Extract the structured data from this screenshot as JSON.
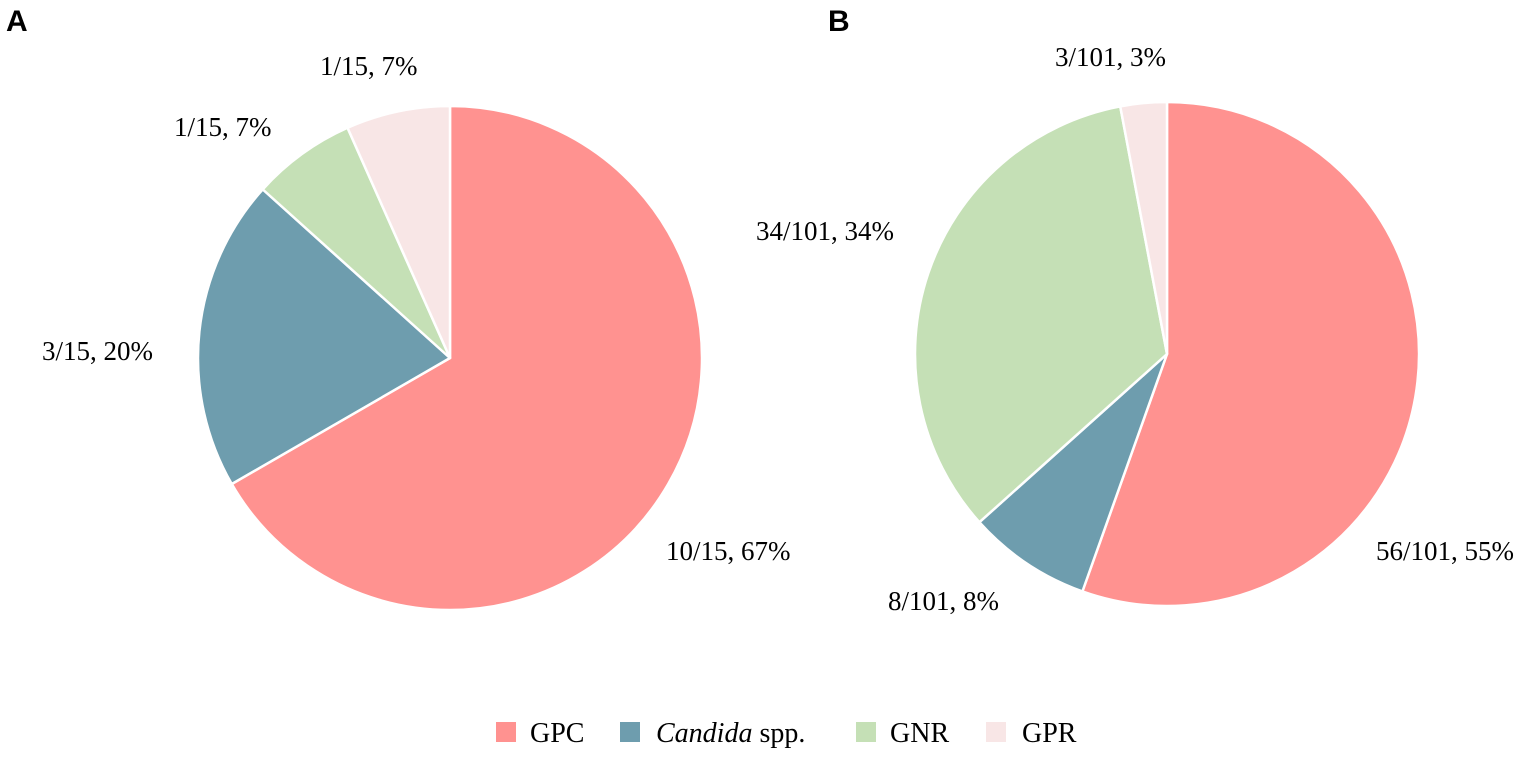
{
  "legend": [
    {
      "key": "GPC",
      "text": "GPC",
      "italic_part": "",
      "color": "#FF9290"
    },
    {
      "key": "Candida",
      "text": " spp.",
      "italic_part": "Candida",
      "color": "#6E9DAE"
    },
    {
      "key": "GNR",
      "text": "GNR",
      "italic_part": "",
      "color": "#C5E0B6"
    },
    {
      "key": "GPR",
      "text": "GPR",
      "italic_part": "",
      "color": "#F8E6E6"
    }
  ],
  "chart_data": [
    {
      "type": "pie",
      "panel": "A",
      "title": "",
      "total": 15,
      "start_angle_deg": 0,
      "direction": "clockwise",
      "slices": [
        {
          "category": "GPC",
          "count": 10,
          "percent": 67,
          "label": "10/15, 67%"
        },
        {
          "category": "Candida",
          "count": 3,
          "percent": 20,
          "label": "3/15, 20%"
        },
        {
          "category": "GNR",
          "count": 1,
          "percent": 7,
          "label": "1/15, 7%"
        },
        {
          "category": "GPR",
          "count": 1,
          "percent": 7,
          "label": "1/15, 7%"
        }
      ]
    },
    {
      "type": "pie",
      "panel": "B",
      "title": "",
      "total": 101,
      "start_angle_deg": 0,
      "direction": "clockwise",
      "slices": [
        {
          "category": "GPC",
          "count": 56,
          "percent": 55,
          "label": "56/101, 55%"
        },
        {
          "category": "Candida",
          "count": 8,
          "percent": 8,
          "label": "8/101, 8%"
        },
        {
          "category": "GNR",
          "count": 34,
          "percent": 34,
          "label": "34/101, 34%"
        },
        {
          "category": "GPR",
          "count": 3,
          "percent": 3,
          "label": "3/101, 3%"
        }
      ]
    }
  ]
}
